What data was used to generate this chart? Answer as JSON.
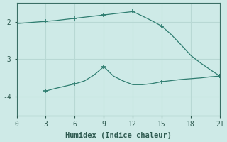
{
  "xlabel": "Humidex (Indice chaleur)",
  "background_color": "#ceeae7",
  "line_color": "#2e7d70",
  "grid_color": "#b8d8d4",
  "x_line1": [
    0,
    1,
    2,
    3,
    4,
    5,
    6,
    7,
    8,
    9,
    10,
    11,
    12,
    13,
    14,
    15,
    16,
    17,
    18,
    19,
    20,
    21
  ],
  "y_line1": [
    -2.05,
    -2.03,
    -2.01,
    -1.99,
    -1.97,
    -1.94,
    -1.91,
    -1.88,
    -1.85,
    -1.82,
    -1.79,
    -1.76,
    -1.73,
    -1.85,
    -1.98,
    -2.12,
    -2.35,
    -2.62,
    -2.9,
    -3.1,
    -3.28,
    -3.45
  ],
  "x_line2": [
    3,
    4,
    5,
    6,
    7,
    8,
    9,
    10,
    11,
    12,
    13,
    14,
    15,
    16,
    17,
    18,
    19,
    20,
    21
  ],
  "y_line2": [
    -3.85,
    -3.78,
    -3.72,
    -3.66,
    -3.58,
    -3.42,
    -3.2,
    -3.45,
    -3.58,
    -3.68,
    -3.68,
    -3.65,
    -3.6,
    -3.57,
    -3.54,
    -3.52,
    -3.5,
    -3.47,
    -3.45
  ],
  "marker_x1": [
    3,
    6,
    9,
    12,
    15,
    21
  ],
  "marker_y1": [
    -1.99,
    -1.91,
    -1.82,
    -1.73,
    -2.12,
    -3.45
  ],
  "marker_x2": [
    3,
    6,
    9,
    15,
    21
  ],
  "marker_y2": [
    -3.85,
    -3.66,
    -3.2,
    -3.6,
    -3.45
  ],
  "xlim": [
    0,
    21
  ],
  "ylim": [
    -4.5,
    -1.5
  ],
  "xticks": [
    0,
    3,
    6,
    9,
    12,
    15,
    18,
    21
  ],
  "yticks": [
    -4,
    -3,
    -2
  ]
}
